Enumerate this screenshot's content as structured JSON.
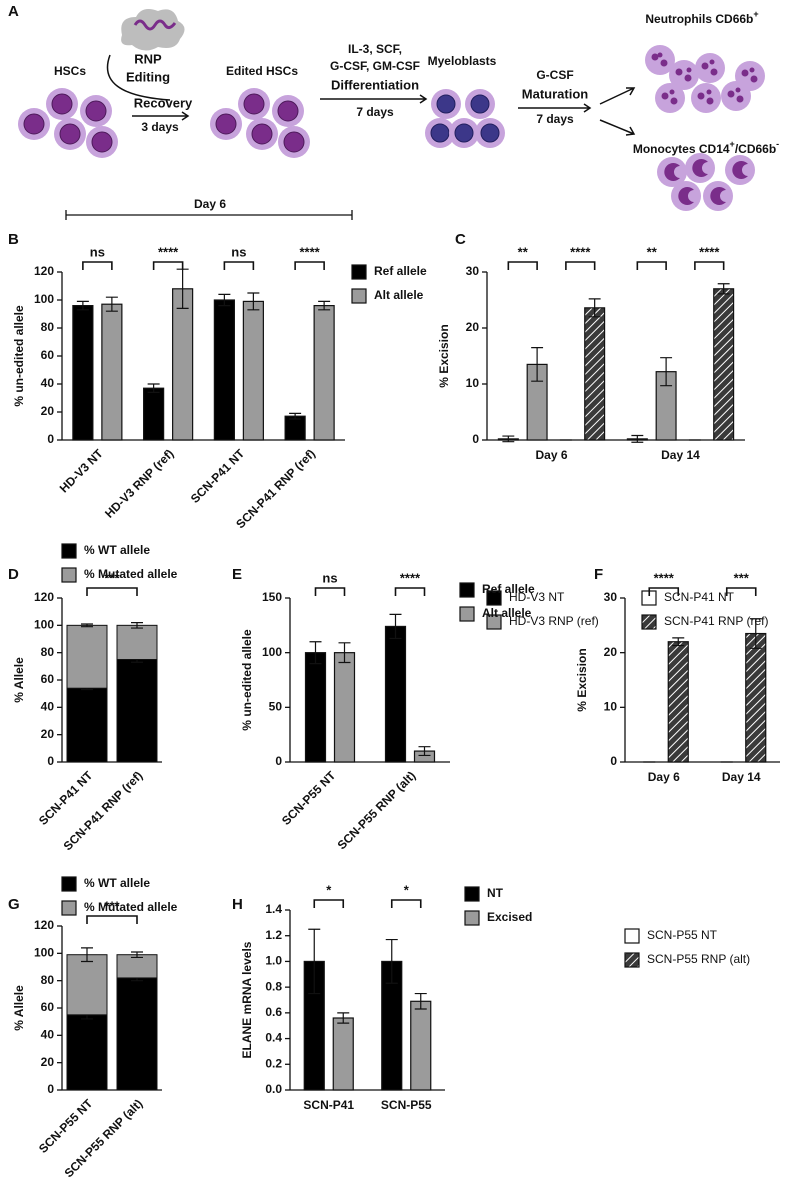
{
  "panel_a": {
    "label": "A",
    "rnp": "RNP",
    "editing": "Editing",
    "hscs": "HSCs",
    "recovery": "Recovery",
    "recovery_days": "3 days",
    "edited_hscs": "Edited HSCs",
    "cytokines_1": "IL-3, SCF,",
    "cytokines_2": "G-CSF, GM-CSF",
    "differentiation": "Differentiation",
    "differentiation_days": "7 days",
    "myeloblasts": "Myeloblasts",
    "gcsf": "G-CSF",
    "maturation": "Maturation",
    "maturation_days": "7 days",
    "neutrophils": [
      "Neutrophils CD66b",
      "+"
    ],
    "monocytes": [
      "Monocytes CD14",
      "+",
      "/CD66b",
      "-"
    ]
  },
  "day6_bracket": "Day 6",
  "chart_data": [
    {
      "panel": "B",
      "type": "bar",
      "ylabel": "% un-edited allele",
      "categories": [
        "HD-V3 NT",
        "HD-V3 RNP (ref)",
        "SCN-P41 NT",
        "SCN-P41 RNP (ref)"
      ],
      "series": [
        {
          "name": "Ref allele",
          "color": "#000000",
          "values": [
            96,
            37,
            100,
            17
          ],
          "errors": [
            3,
            3,
            4,
            2
          ]
        },
        {
          "name": "Alt allele",
          "color": "#9b9b9b",
          "values": [
            97,
            108,
            99,
            96
          ],
          "errors": [
            5,
            14,
            6,
            3
          ]
        }
      ],
      "ylim": [
        0,
        120
      ],
      "yticks": [
        0,
        20,
        40,
        60,
        80,
        100,
        120
      ],
      "significance": [
        "ns",
        "****",
        "ns",
        "****"
      ],
      "legend": "right",
      "rotated_labels": true
    },
    {
      "panel": "C",
      "type": "bar",
      "ylabel": "% Excision",
      "categories": [
        "Day 6",
        "Day 14"
      ],
      "series": [
        {
          "name": "HD-V3 NT",
          "color": "#000000",
          "values": [
            0.2,
            0.2
          ],
          "errors": [
            0.5,
            0.6
          ]
        },
        {
          "name": "HD-V3 RNP (ref)",
          "color": "#9b9b9b",
          "values": [
            13.5,
            12.2
          ],
          "errors": [
            3,
            2.5
          ]
        },
        {
          "name": "SCN-P41 NT",
          "color": "#ffffff",
          "values": [
            0,
            0
          ],
          "errors": [
            0,
            0
          ]
        },
        {
          "name": "SCN-P41 RNP (ref)",
          "color": "#3a3a3a",
          "hatch": true,
          "values": [
            23.6,
            27
          ],
          "errors": [
            1.6,
            0.9
          ]
        }
      ],
      "ylim": [
        0,
        30
      ],
      "yticks": [
        0,
        10,
        20,
        30
      ],
      "significance": [
        "**",
        "****",
        "**",
        "****"
      ],
      "legend": "bottom",
      "rotated_labels": false
    },
    {
      "panel": "D",
      "type": "stacked_bar",
      "ylabel": "% Allele",
      "categories": [
        "SCN-P41 NT",
        "SCN-P41 RNP (ref)"
      ],
      "series": [
        {
          "name": "% WT allele",
          "color": "#000000",
          "values": [
            54,
            75
          ],
          "errors": [
            1,
            2
          ]
        },
        {
          "name": "% Mutated allele",
          "color": "#9b9b9b",
          "values": [
            46,
            25
          ],
          "errors": [
            1,
            2
          ]
        }
      ],
      "ylim": [
        0,
        120
      ],
      "yticks": [
        0,
        20,
        40,
        60,
        80,
        100,
        120
      ],
      "significance": [
        "***"
      ],
      "legend": "top",
      "rotated_labels": true
    },
    {
      "panel": "E",
      "type": "bar",
      "ylabel": "% un-edited allele",
      "categories": [
        "SCN-P55 NT",
        "SCN-P55 RNP (alt)"
      ],
      "series": [
        {
          "name": "Ref allele",
          "color": "#000000",
          "values": [
            100,
            124
          ],
          "errors": [
            10,
            11
          ]
        },
        {
          "name": "Alt allele",
          "color": "#9b9b9b",
          "values": [
            100,
            10
          ],
          "errors": [
            9,
            4
          ]
        }
      ],
      "ylim": [
        0,
        150
      ],
      "yticks": [
        0,
        50,
        100,
        150
      ],
      "significance": [
        "ns",
        "****"
      ],
      "legend": "right",
      "rotated_labels": true
    },
    {
      "panel": "F",
      "type": "bar",
      "ylabel": "% Excision",
      "categories": [
        "Day 6",
        "Day 14"
      ],
      "series": [
        {
          "name": "SCN-P55 NT",
          "color": "#ffffff",
          "values": [
            0,
            0
          ],
          "errors": [
            0,
            0
          ]
        },
        {
          "name": "SCN-P55 RNP (alt)",
          "color": "#3a3a3a",
          "hatch": true,
          "values": [
            22,
            23.5
          ],
          "errors": [
            0.7,
            2.7
          ]
        }
      ],
      "ylim": [
        0,
        30
      ],
      "yticks": [
        0,
        10,
        20,
        30
      ],
      "significance": [
        "****",
        "***"
      ],
      "legend": "bottom",
      "rotated_labels": false
    },
    {
      "panel": "G",
      "type": "stacked_bar",
      "ylabel": "% Allele",
      "categories": [
        "SCN-P55 NT",
        "SCN-P55 RNP (alt)"
      ],
      "series": [
        {
          "name": "% WT allele",
          "color": "#000000",
          "values": [
            55,
            82
          ],
          "errors": [
            3,
            2
          ]
        },
        {
          "name": "% Mutated allele",
          "color": "#9b9b9b",
          "values": [
            44,
            17
          ],
          "errors": [
            5,
            2
          ]
        }
      ],
      "ylim": [
        0,
        120
      ],
      "yticks": [
        0,
        20,
        40,
        60,
        80,
        100,
        120
      ],
      "significance": [
        "***"
      ],
      "legend": "top",
      "rotated_labels": true
    },
    {
      "panel": "H",
      "type": "bar",
      "ylabel": "ELANE mRNA levels",
      "categories": [
        "SCN-P41",
        "SCN-P55"
      ],
      "series": [
        {
          "name": "NT",
          "color": "#000000",
          "values": [
            1.0,
            1.0
          ],
          "errors": [
            0.25,
            0.17
          ]
        },
        {
          "name": "Excised",
          "color": "#9b9b9b",
          "values": [
            0.56,
            0.69
          ],
          "errors": [
            0.04,
            0.06
          ]
        }
      ],
      "ylim": [
        0,
        1.4
      ],
      "yticks": [
        {
          "value": 0,
          "label": "0.0"
        },
        {
          "value": 0.2,
          "label": "0.2"
        },
        {
          "value": 0.4,
          "label": "0.4"
        },
        {
          "value": 0.6,
          "label": "0.6"
        },
        {
          "value": 0.8,
          "label": "0.8"
        },
        {
          "value": 1.0,
          "label": "1.0"
        },
        {
          "value": 1.2,
          "label": "1.2"
        },
        {
          "value": 1.4,
          "label": "1.4"
        }
      ],
      "significance": [
        "*",
        "*"
      ],
      "legend": "right",
      "rotated_labels": false
    }
  ]
}
